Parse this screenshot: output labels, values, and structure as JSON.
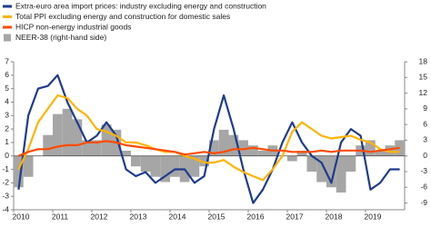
{
  "chart_data": {
    "type": "line",
    "x": [
      2010,
      2010.25,
      2010.5,
      2010.75,
      2011,
      2011.25,
      2011.5,
      2011.75,
      2012,
      2012.25,
      2012.5,
      2012.75,
      2013,
      2013.25,
      2013.5,
      2013.75,
      2014,
      2014.25,
      2014.5,
      2014.75,
      2015,
      2015.25,
      2015.5,
      2015.75,
      2016,
      2016.25,
      2016.5,
      2016.75,
      2017,
      2017.25,
      2017.5,
      2017.75,
      2018,
      2018.25,
      2018.5,
      2018.75,
      2019,
      2019.25,
      2019.5,
      2019.75
    ],
    "series": [
      {
        "name": "Extra-euro area import prices: industry excluding energy and construction",
        "color": "#1f3b8c",
        "values": [
          -2.5,
          3,
          5,
          5.2,
          6,
          4,
          2.5,
          1,
          1.5,
          2.5,
          1.5,
          -1,
          -1.5,
          -1.2,
          -2,
          -1.5,
          -1,
          -1,
          -2,
          -1.5,
          2,
          4.5,
          2,
          -1,
          -3.5,
          -2.5,
          -1,
          1,
          2.5,
          1,
          0,
          -0.5,
          -2,
          1,
          2,
          1.5,
          -2.5,
          -2,
          -1,
          -1
        ]
      },
      {
        "name": "Total PPI excluding energy and construction for domestic sales",
        "color": "#ffb400",
        "values": [
          -1,
          0.5,
          2.5,
          3.5,
          4.5,
          4.3,
          3.5,
          3,
          2,
          1.8,
          1.5,
          1,
          1,
          0.8,
          0.5,
          0.3,
          0.3,
          0,
          -0.2,
          -0.5,
          -0.5,
          -0.3,
          -0.8,
          -1.2,
          -1.5,
          -1.8,
          -1,
          0,
          1.8,
          2.5,
          2,
          1.5,
          1.3,
          1.4,
          1.5,
          1.2,
          1,
          0.5,
          0.3,
          0.3
        ]
      },
      {
        "name": "HICP non-energy industrial goods",
        "color": "#ff4b00",
        "values": [
          0,
          0.3,
          0.5,
          0.5,
          0.7,
          0.8,
          0.8,
          1,
          1,
          1.1,
          1,
          0.8,
          0.7,
          0.6,
          0.5,
          0.4,
          0.3,
          0.1,
          0.2,
          0.3,
          0.2,
          0.3,
          0.5,
          0.5,
          0.6,
          0.5,
          0.4,
          0.4,
          0.3,
          0.3,
          0.3,
          0.4,
          0.3,
          0.4,
          0.4,
          0.4,
          0.3,
          0.4,
          0.5,
          0.6
        ]
      },
      {
        "name": "NEER-38 (right-hand side)",
        "color": "#a6a6a6",
        "kind": "bar",
        "axis": "y2",
        "values": [
          -6,
          -4,
          0,
          4,
          8,
          9,
          7,
          3,
          3,
          6,
          5,
          1,
          -2,
          -3,
          -4,
          -5,
          -4,
          -5,
          -4,
          -2,
          3,
          5,
          4,
          3,
          2,
          1,
          2,
          0,
          -1,
          1,
          -3,
          -5,
          -6,
          -7,
          -3,
          2,
          3,
          1,
          2,
          3
        ]
      }
    ],
    "xlim": [
      2010,
      2020
    ],
    "xticks": [
      2010,
      2011,
      2012,
      2013,
      2014,
      2015,
      2016,
      2017,
      2018,
      2019
    ],
    "ylim": [
      -4,
      7
    ],
    "yticks": [
      -4,
      -3,
      -2,
      -1,
      0,
      1,
      2,
      3,
      4,
      5,
      6,
      7
    ],
    "y2lim": [
      -10.29,
      18
    ],
    "y2ticks": [
      -9,
      -6,
      -3,
      0,
      3,
      6,
      9,
      12,
      15,
      18
    ]
  }
}
